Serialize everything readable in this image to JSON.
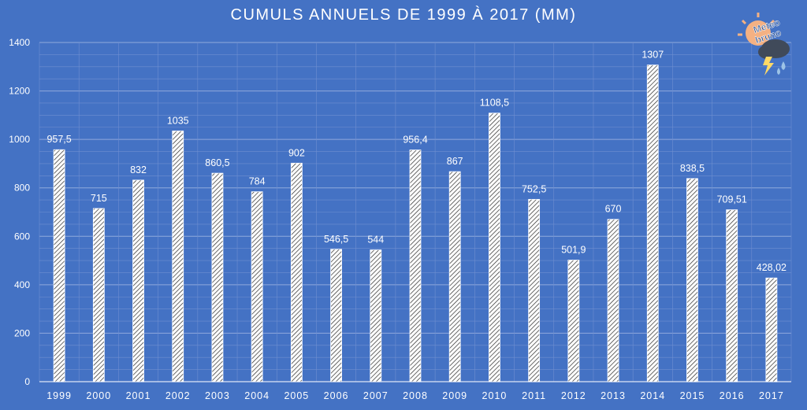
{
  "chart_data": {
    "type": "bar",
    "title": "CUMULS ANNUELS DE 1999 À 2017 (MM)",
    "xlabel": "",
    "ylabel": "",
    "ylim": [
      0,
      1400
    ],
    "yticks": [
      0,
      200,
      400,
      600,
      800,
      1000,
      1200,
      1400
    ],
    "grid": true,
    "categories": [
      "1999",
      "2000",
      "2001",
      "2002",
      "2003",
      "2004",
      "2005",
      "2006",
      "2007",
      "2008",
      "2009",
      "2010",
      "2011",
      "2012",
      "2013",
      "2014",
      "2015",
      "2016",
      "2017"
    ],
    "values": [
      957.5,
      715,
      832,
      1035,
      860.5,
      784,
      902,
      546.5,
      544,
      956.4,
      867,
      1108.5,
      752.5,
      501.9,
      670,
      1307,
      838.5,
      709.51,
      428.02
    ],
    "data_labels": [
      "957,5",
      "715",
      "832",
      "1035",
      "860,5",
      "784",
      "902",
      "546,5",
      "544",
      "956,4",
      "867",
      "1108,5",
      "752,5",
      "501,9",
      "670",
      "1307",
      "838,5",
      "709,51",
      "428,02"
    ]
  },
  "logo": {
    "text_line1": "Meteo",
    "text_line2": "bruno"
  },
  "colors": {
    "background": "#4472c4",
    "text": "#ffffff",
    "grid": "#7f9fd9",
    "axis": "#dfe7f6"
  }
}
